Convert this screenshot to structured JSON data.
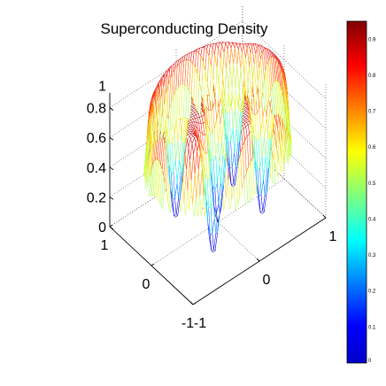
{
  "chart_data": {
    "type": "surface",
    "title": "Superconducting Density",
    "xlabel": "",
    "ylabel": "",
    "zlabel": "",
    "xlim": [
      -1,
      1
    ],
    "ylim": [
      -1,
      1
    ],
    "zlim": [
      0,
      0.9
    ],
    "x_ticks": [
      "-1",
      "0",
      "1"
    ],
    "y_ticks": [
      "-1",
      "0",
      "1"
    ],
    "z_ticks": [
      "0",
      "0.2",
      "0.4",
      "0.6",
      "0.8",
      "1"
    ],
    "grid": true,
    "colormap": "jet",
    "colorbar": {
      "position": "right",
      "range": [
        0,
        0.95
      ],
      "ticks": [
        "0",
        "0.1",
        "0.2",
        "0.3",
        "0.4",
        "0.5",
        "0.6",
        "0.7",
        "0.8",
        "0.9"
      ]
    },
    "surface": {
      "shape": "disk",
      "radius": 0.95,
      "plateau_value": 0.9,
      "vortices": [
        {
          "x": 0.35,
          "y": 0.45,
          "min": 0.05
        },
        {
          "x": -0.35,
          "y": 0.45,
          "min": 0.05
        },
        {
          "x": 0.45,
          "y": -0.35,
          "min": 0.05
        },
        {
          "x": -0.45,
          "y": -0.35,
          "min": 0.05
        },
        {
          "x": 0.0,
          "y": 0.0,
          "min": 0.05
        }
      ]
    }
  }
}
